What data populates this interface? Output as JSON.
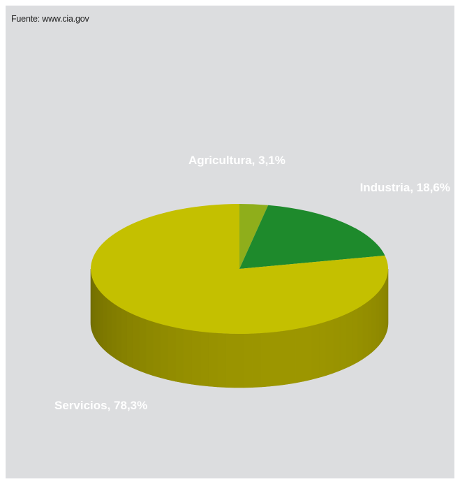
{
  "source": "Fuente: www.cia.gov",
  "chart_data": {
    "type": "pie",
    "style": "3d",
    "slices": [
      {
        "name": "Agricultura",
        "value": 3.1,
        "label": "Agricultura, 3,1%",
        "color": "#8fae1b",
        "side_color": "#6e8a12"
      },
      {
        "name": "Industria",
        "value": 18.6,
        "label": "Industria, 18,6%",
        "color": "#1e8a2c",
        "side_color": "#16681f"
      },
      {
        "name": "Servicios",
        "value": 78.3,
        "label": "Servicios, 78,3%",
        "color": "#c4c000",
        "side_color": "#9c9600"
      }
    ],
    "background": "#dcdddf"
  }
}
